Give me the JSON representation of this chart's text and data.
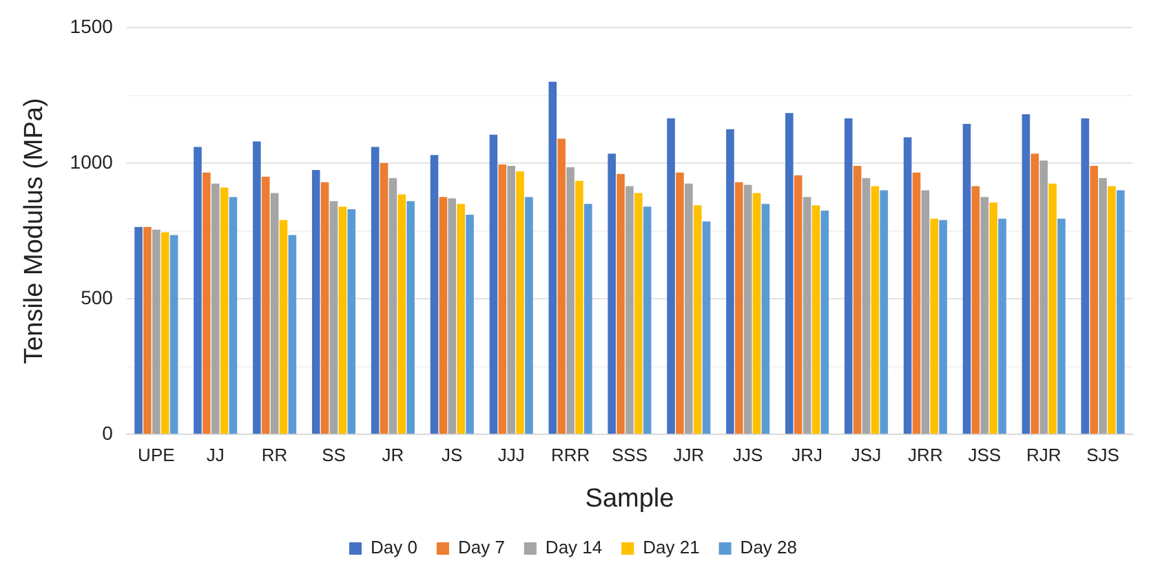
{
  "chart_data": {
    "type": "bar",
    "xlabel": "Sample",
    "ylabel": "Tensile Modulus (MPa)",
    "categories": [
      "UPE",
      "JJ",
      "RR",
      "SS",
      "JR",
      "JS",
      "JJJ",
      "RRR",
      "SSS",
      "JJR",
      "JJS",
      "JRJ",
      "JSJ",
      "JRR",
      "JSS",
      "RJR",
      "SJS"
    ],
    "series": [
      {
        "name": "Day 0",
        "color": "#4472c4",
        "values": [
          765,
          1060,
          1080,
          975,
          1060,
          1030,
          1105,
          1300,
          1035,
          1165,
          1125,
          1185,
          1165,
          1095,
          1145,
          1180,
          1165
        ]
      },
      {
        "name": "Day 7",
        "color": "#ed7d31",
        "values": [
          765,
          965,
          950,
          930,
          1000,
          875,
          995,
          1090,
          960,
          965,
          930,
          955,
          990,
          965,
          915,
          1035,
          990
        ]
      },
      {
        "name": "Day 14",
        "color": "#a5a5a5",
        "values": [
          755,
          925,
          890,
          860,
          945,
          870,
          990,
          985,
          915,
          925,
          920,
          875,
          945,
          900,
          875,
          1010,
          945
        ]
      },
      {
        "name": "Day 21",
        "color": "#ffc000",
        "values": [
          745,
          910,
          790,
          840,
          885,
          850,
          970,
          935,
          890,
          845,
          890,
          845,
          915,
          795,
          855,
          925,
          915
        ]
      },
      {
        "name": "Day 28",
        "color": "#5b9bd5",
        "values": [
          735,
          875,
          735,
          830,
          860,
          810,
          875,
          850,
          840,
          785,
          850,
          825,
          900,
          790,
          795,
          795,
          900
        ]
      }
    ],
    "ylim": [
      0,
      1500
    ],
    "yticks": [
      0,
      {
        "value": 250,
        "label": null
      },
      500,
      {
        "value": 750,
        "label": null
      },
      1000,
      {
        "value": 1250,
        "label": null
      },
      1500
    ],
    "grid": "y",
    "legend": "bottom"
  }
}
